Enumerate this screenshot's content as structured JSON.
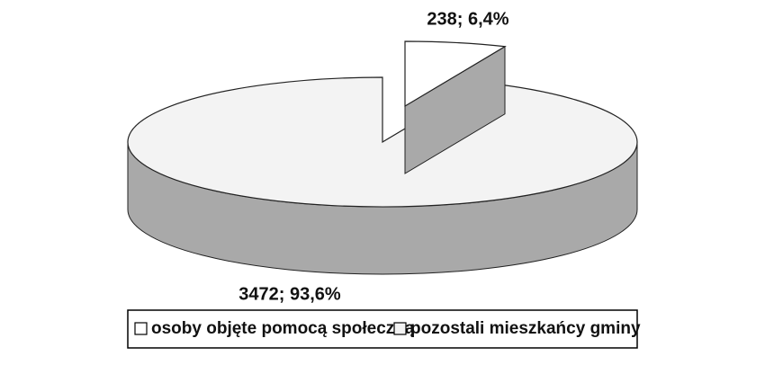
{
  "chart_data": {
    "type": "pie3d",
    "categories": [
      "osoby objęte pomocą społeczną",
      "pozostali mieszkańcy gminy"
    ],
    "values": [
      238,
      3472
    ],
    "value_labels": [
      "238; 6,4%",
      "3472; 93,6%"
    ],
    "colors": [
      "#ffffff",
      "#f3f3f3"
    ],
    "legend": "bottom"
  }
}
